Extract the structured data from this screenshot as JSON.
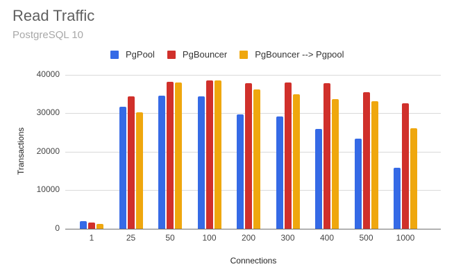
{
  "chart_data": {
    "type": "bar",
    "title": "Read Traffic",
    "subtitle": "PostgreSQL 10",
    "xlabel": "Connections",
    "ylabel": "Transactions",
    "ylim": [
      0,
      40000
    ],
    "yticks": [
      "0",
      "10000",
      "20000",
      "30000",
      "40000"
    ],
    "grid": true,
    "legend_position": "top",
    "categories": [
      "1",
      "25",
      "50",
      "100",
      "200",
      "300",
      "400",
      "500",
      "1000"
    ],
    "series": [
      {
        "name": "PgPool",
        "color": "#356AE6",
        "values": [
          2000,
          31700,
          34600,
          34400,
          29700,
          29200,
          25800,
          23300,
          15900
        ]
      },
      {
        "name": "PgBouncer",
        "color": "#D0302B",
        "values": [
          1600,
          34400,
          38100,
          38400,
          37800,
          38000,
          37800,
          35400,
          32600
        ]
      },
      {
        "name": "PgBouncer --> Pgpool",
        "color": "#EFA70E",
        "values": [
          1200,
          30200,
          37900,
          38500,
          36200,
          34800,
          33600,
          33000,
          26100
        ]
      }
    ]
  }
}
